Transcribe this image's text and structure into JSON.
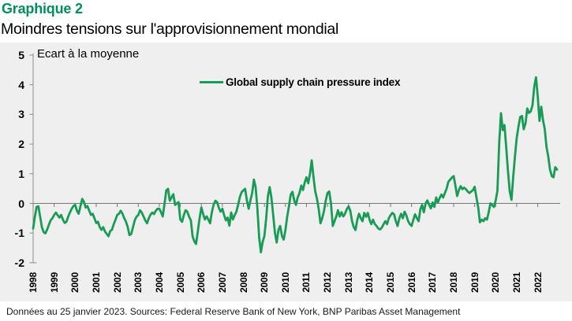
{
  "header": {
    "kicker": "Graphique 2",
    "title": "Moindres tensions sur l'approvisionnement mondial"
  },
  "footer": {
    "source_note": "Données au 25 janvier 2023. Sources: Federal Reserve Bank of New York, BNP Paribas Asset Management"
  },
  "colors": {
    "kicker_green": "#00915A",
    "line_green": "#189C55",
    "panel_gray": "#EFEFEF",
    "axis_gray": "#8C8C8C",
    "zero_line_gray": "#767676"
  },
  "chart_data": {
    "type": "line",
    "title": "Moindres tensions sur l'approvisionnement mondial",
    "unit_label": "Ecart à la moyenne",
    "xlabel": "",
    "ylabel": "Ecart à la moyenne",
    "ylim": [
      -2,
      5
    ],
    "y_ticks": [
      5,
      4,
      3,
      2,
      1,
      0,
      -1,
      -2
    ],
    "x_ticks": [
      1998,
      1999,
      2000,
      2001,
      2002,
      2003,
      2004,
      2005,
      2006,
      2007,
      2008,
      2009,
      2010,
      2011,
      2012,
      2013,
      2014,
      2015,
      2016,
      2017,
      2018,
      2019,
      2020,
      2021,
      2022
    ],
    "x_range": [
      1998,
      2023
    ],
    "frequency": "monthly",
    "grid": false,
    "legend_position": "top-center",
    "series": [
      {
        "name": "Global supply chain pressure index",
        "color": "#189C55",
        "start_year": 1998,
        "values_by_year": {
          "1998": [
            -0.85,
            -0.45,
            -0.12,
            -0.1,
            -0.45,
            -0.8,
            -0.97,
            -1.01,
            -0.88,
            -0.72,
            -0.57,
            -0.5
          ],
          "1999": [
            -0.39,
            -0.31,
            -0.4,
            -0.48,
            -0.39,
            -0.55,
            -0.66,
            -0.62,
            -0.45,
            -0.31,
            -0.18,
            -0.09
          ],
          "2000": [
            -0.05,
            -0.25,
            -0.35,
            -0.09,
            0.15,
            0.05,
            -0.14,
            -0.09,
            -0.25,
            -0.39,
            -0.35,
            -0.5
          ],
          "2001": [
            -0.66,
            -0.62,
            -0.8,
            -0.89,
            -0.8,
            -0.95,
            -1.03,
            -1.11,
            -0.93,
            -0.89,
            -0.7,
            -0.55
          ],
          "2002": [
            -0.39,
            -0.35,
            -0.25,
            -0.35,
            -0.5,
            -0.62,
            -0.8,
            -1.07,
            -1.03,
            -0.8,
            -0.57,
            -0.45
          ],
          "2003": [
            -0.39,
            -0.23,
            -0.31,
            -0.44,
            -0.57,
            -0.67,
            -0.5,
            -0.38,
            -0.31,
            -0.36,
            -0.25,
            -0.18
          ],
          "2004": [
            -0.18,
            -0.3,
            -0.44,
            0.0,
            0.44,
            0.49,
            0.09,
            0.2,
            0.31,
            -0.05,
            0.0,
            0.04
          ],
          "2005": [
            -0.54,
            -0.62,
            -0.4,
            -0.23,
            -0.28,
            -0.45,
            -0.57,
            -1.11,
            -1.28,
            -1.37,
            -0.93,
            -0.5
          ],
          "2006": [
            -0.14,
            -0.35,
            -0.54,
            -0.44,
            -0.55,
            -0.67,
            -0.3,
            -0.05,
            0.09,
            0.04,
            -0.15,
            -0.28
          ],
          "2007": [
            -0.18,
            -0.4,
            -0.57,
            -0.48,
            -0.75,
            -0.31,
            -0.54,
            -0.4,
            -0.28,
            -0.05,
            0.22,
            0.38
          ],
          "2008": [
            0.44,
            0.49,
            0.1,
            -0.18,
            0.1,
            0.35,
            0.8,
            0.55,
            -0.2,
            -1.15,
            -1.65,
            -1.3
          ],
          "2009": [
            -1.1,
            -0.5,
            0.25,
            0.55,
            0.2,
            -0.4,
            -1.0,
            -1.32,
            -0.9,
            -0.76,
            -1.1,
            -1.22
          ],
          "2010": [
            -0.9,
            -0.45,
            -0.11,
            0.3,
            0.39,
            0.1,
            -0.05,
            0.2,
            0.35,
            0.6,
            0.45,
            0.7
          ],
          "2011": [
            0.88,
            0.68,
            1.0,
            1.45,
            0.9,
            0.4,
            0.15,
            -0.2,
            -0.67,
            -0.5,
            -0.25,
            0.1
          ],
          "2012": [
            0.35,
            0.4,
            0.0,
            -0.76,
            -0.6,
            -0.44,
            -0.23,
            -0.44,
            -0.3,
            -0.44,
            -0.35,
            -0.2
          ],
          "2013": [
            -0.1,
            -0.25,
            -0.6,
            -0.8,
            -0.9,
            -0.55,
            -0.35,
            -0.5,
            -0.6,
            -0.32,
            -0.45,
            -0.32
          ],
          "2014": [
            -0.55,
            -0.7,
            -0.55,
            -0.7,
            -0.76,
            -0.85,
            -0.88,
            -0.82,
            -0.7,
            -0.6,
            -0.7,
            -0.5
          ],
          "2015": [
            -0.4,
            -0.32,
            -0.37,
            -0.6,
            -0.76,
            -0.5,
            -0.35,
            -0.5,
            -0.28,
            -0.4,
            -0.6,
            -0.7
          ],
          "2016": [
            -0.76,
            -0.55,
            -0.37,
            -0.5,
            -0.6,
            -0.2,
            -0.05,
            -0.3,
            0.0,
            0.1,
            -0.05,
            -0.17
          ],
          "2017": [
            0.03,
            -0.12,
            0.2,
            0.03,
            0.18,
            0.3,
            0.2,
            0.35,
            0.5,
            0.73,
            0.8,
            0.87
          ],
          "2018": [
            0.92,
            0.6,
            0.25,
            0.45,
            0.58,
            0.48,
            0.53,
            0.48,
            0.4,
            0.35,
            0.4,
            0.44
          ],
          "2019": [
            0.56,
            0.2,
            -0.13,
            -0.64,
            -0.55,
            -0.6,
            -0.5,
            -0.55,
            -0.3,
            0.0,
            -0.06,
            -0.12
          ],
          "2020": [
            0.1,
            0.43,
            2.02,
            3.04,
            2.47,
            2.64,
            1.9,
            1.1,
            0.4,
            0.12,
            0.9,
            1.58
          ],
          "2021": [
            2.2,
            2.6,
            2.91,
            2.95,
            2.5,
            2.7,
            3.2,
            3.05,
            3.1,
            3.3,
            3.95,
            4.25
          ],
          "2022": [
            3.6,
            2.78,
            3.26,
            2.8,
            2.5,
            1.9,
            1.58,
            1.14,
            0.92,
            0.88,
            1.22,
            1.14
          ]
        }
      }
    ]
  }
}
